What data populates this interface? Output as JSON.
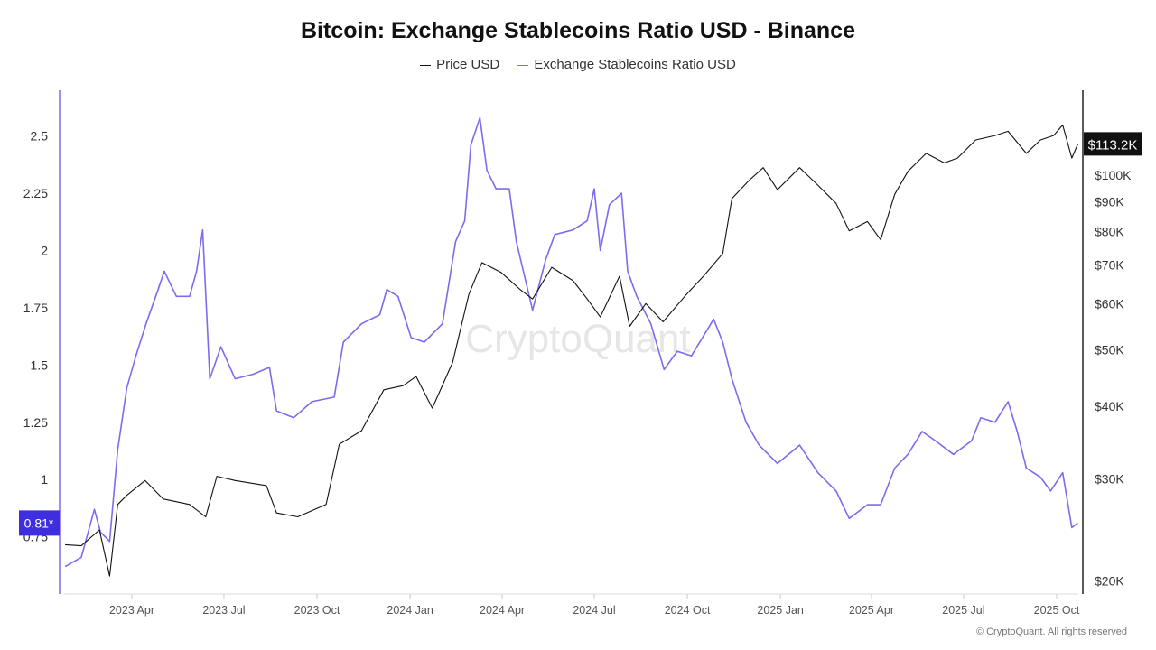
{
  "chart_data": {
    "type": "line",
    "title": "Bitcoin: Exchange Stablecoins Ratio USD - Binance",
    "legend_position": "top-center",
    "grid": false,
    "x_ticks": [
      "2023 Apr",
      "2023 Jul",
      "2023 Oct",
      "2024 Jan",
      "2024 Apr",
      "2024 Jul",
      "2024 Oct",
      "2025 Jan",
      "2025 Apr",
      "2025 Jul",
      "2025 Oct"
    ],
    "left_axis": {
      "ticks": [
        "0.75",
        "1",
        "1.25",
        "1.5",
        "1.75",
        "2",
        "2.25",
        "2.5"
      ],
      "range": [
        0.5,
        2.7
      ]
    },
    "right_axis": {
      "scale": "log",
      "ticks": [
        "$20K",
        "$30K",
        "$40K",
        "$50K",
        "$60K",
        "$70K",
        "$80K",
        "$90K",
        "$100K"
      ],
      "range": [
        19000,
        140000
      ]
    },
    "series": [
      {
        "name": "Price USD",
        "axis": "right",
        "color": "#111111",
        "points": [
          [
            "2023-01-25",
            23100
          ],
          [
            "2023-02-10",
            23000
          ],
          [
            "2023-02-28",
            24500
          ],
          [
            "2023-03-10",
            20400
          ],
          [
            "2023-03-18",
            27100
          ],
          [
            "2023-03-27",
            28100
          ],
          [
            "2023-04-14",
            29800
          ],
          [
            "2023-05-02",
            27700
          ],
          [
            "2023-05-28",
            27100
          ],
          [
            "2023-06-13",
            25800
          ],
          [
            "2023-06-24",
            30300
          ],
          [
            "2023-07-12",
            29800
          ],
          [
            "2023-08-12",
            29200
          ],
          [
            "2023-08-22",
            26200
          ],
          [
            "2023-09-12",
            25800
          ],
          [
            "2023-10-10",
            27100
          ],
          [
            "2023-10-23",
            34400
          ],
          [
            "2023-11-14",
            36300
          ],
          [
            "2023-12-06",
            42700
          ],
          [
            "2023-12-25",
            43400
          ],
          [
            "2024-01-07",
            45000
          ],
          [
            "2024-01-23",
            39700
          ],
          [
            "2024-02-12",
            47600
          ],
          [
            "2024-02-28",
            62300
          ],
          [
            "2024-03-12",
            70700
          ],
          [
            "2024-03-31",
            68000
          ],
          [
            "2024-04-19",
            63500
          ],
          [
            "2024-05-01",
            61200
          ],
          [
            "2024-05-20",
            69400
          ],
          [
            "2024-06-10",
            65800
          ],
          [
            "2024-06-24",
            61200
          ],
          [
            "2024-07-07",
            57000
          ],
          [
            "2024-07-26",
            67000
          ],
          [
            "2024-08-05",
            54900
          ],
          [
            "2024-08-21",
            60100
          ],
          [
            "2024-09-07",
            55900
          ],
          [
            "2024-09-30",
            62300
          ],
          [
            "2024-10-17",
            67000
          ],
          [
            "2024-11-05",
            73300
          ],
          [
            "2024-11-14",
            91100
          ],
          [
            "2024-12-01",
            97900
          ],
          [
            "2024-12-15",
            103000
          ],
          [
            "2024-12-29",
            94400
          ],
          [
            "2025-01-20",
            103000
          ],
          [
            "2025-02-07",
            96100
          ],
          [
            "2025-02-25",
            89400
          ],
          [
            "2025-03-10",
            80200
          ],
          [
            "2025-03-28",
            83200
          ],
          [
            "2025-04-10",
            77400
          ],
          [
            "2025-04-24",
            92700
          ],
          [
            "2025-05-07",
            101500
          ],
          [
            "2025-05-25",
            109000
          ],
          [
            "2025-06-12",
            105000
          ],
          [
            "2025-06-25",
            107000
          ],
          [
            "2025-07-13",
            115000
          ],
          [
            "2025-08-01",
            117000
          ],
          [
            "2025-08-14",
            119000
          ],
          [
            "2025-09-01",
            109000
          ],
          [
            "2025-09-15",
            115000
          ],
          [
            "2025-09-28",
            117000
          ],
          [
            "2025-10-07",
            122000
          ],
          [
            "2025-10-16",
            107000
          ],
          [
            "2025-10-22",
            113200
          ]
        ]
      },
      {
        "name": "Exchange Stablecoins Ratio USD",
        "axis": "left",
        "color": "#7b6cf0",
        "points": [
          [
            "2023-01-25",
            0.62
          ],
          [
            "2023-02-10",
            0.66
          ],
          [
            "2023-02-23",
            0.87
          ],
          [
            "2023-03-01",
            0.77
          ],
          [
            "2023-03-10",
            0.73
          ],
          [
            "2023-03-18",
            1.13
          ],
          [
            "2023-03-27",
            1.4
          ],
          [
            "2023-04-05",
            1.54
          ],
          [
            "2023-04-15",
            1.68
          ],
          [
            "2023-04-27",
            1.83
          ],
          [
            "2023-05-03",
            1.91
          ],
          [
            "2023-05-15",
            1.8
          ],
          [
            "2023-05-28",
            1.8
          ],
          [
            "2023-06-04",
            1.91
          ],
          [
            "2023-06-10",
            2.09
          ],
          [
            "2023-06-17",
            1.44
          ],
          [
            "2023-06-28",
            1.58
          ],
          [
            "2023-07-12",
            1.44
          ],
          [
            "2023-07-30",
            1.46
          ],
          [
            "2023-08-15",
            1.49
          ],
          [
            "2023-08-22",
            1.3
          ],
          [
            "2023-09-08",
            1.27
          ],
          [
            "2023-09-26",
            1.34
          ],
          [
            "2023-10-18",
            1.36
          ],
          [
            "2023-10-27",
            1.6
          ],
          [
            "2023-11-14",
            1.68
          ],
          [
            "2023-12-02",
            1.72
          ],
          [
            "2023-12-09",
            1.83
          ],
          [
            "2023-12-20",
            1.8
          ],
          [
            "2024-01-02",
            1.62
          ],
          [
            "2024-01-15",
            1.6
          ],
          [
            "2024-02-02",
            1.68
          ],
          [
            "2024-02-15",
            2.04
          ],
          [
            "2024-02-24",
            2.13
          ],
          [
            "2024-03-01",
            2.46
          ],
          [
            "2024-03-10",
            2.58
          ],
          [
            "2024-03-17",
            2.35
          ],
          [
            "2024-03-26",
            2.27
          ],
          [
            "2024-04-08",
            2.27
          ],
          [
            "2024-04-15",
            2.04
          ],
          [
            "2024-05-01",
            1.74
          ],
          [
            "2024-05-14",
            1.96
          ],
          [
            "2024-05-23",
            2.07
          ],
          [
            "2024-06-10",
            2.09
          ],
          [
            "2024-06-24",
            2.13
          ],
          [
            "2024-07-01",
            2.27
          ],
          [
            "2024-07-07",
            2.0
          ],
          [
            "2024-07-16",
            2.2
          ],
          [
            "2024-07-28",
            2.25
          ],
          [
            "2024-08-03",
            1.91
          ],
          [
            "2024-08-12",
            1.8
          ],
          [
            "2024-08-26",
            1.68
          ],
          [
            "2024-09-08",
            1.48
          ],
          [
            "2024-09-21",
            1.56
          ],
          [
            "2024-10-05",
            1.54
          ],
          [
            "2024-10-27",
            1.7
          ],
          [
            "2024-11-05",
            1.6
          ],
          [
            "2024-11-14",
            1.44
          ],
          [
            "2024-11-28",
            1.25
          ],
          [
            "2024-12-11",
            1.15
          ],
          [
            "2024-12-29",
            1.07
          ],
          [
            "2025-01-20",
            1.15
          ],
          [
            "2025-02-07",
            1.03
          ],
          [
            "2025-02-25",
            0.95
          ],
          [
            "2025-03-10",
            0.83
          ],
          [
            "2025-03-28",
            0.89
          ],
          [
            "2025-04-10",
            0.89
          ],
          [
            "2025-04-24",
            1.05
          ],
          [
            "2025-05-07",
            1.11
          ],
          [
            "2025-05-21",
            1.21
          ],
          [
            "2025-06-03",
            1.17
          ],
          [
            "2025-06-21",
            1.11
          ],
          [
            "2025-07-09",
            1.17
          ],
          [
            "2025-07-18",
            1.27
          ],
          [
            "2025-08-01",
            1.25
          ],
          [
            "2025-08-14",
            1.34
          ],
          [
            "2025-08-23",
            1.21
          ],
          [
            "2025-09-01",
            1.05
          ],
          [
            "2025-09-15",
            1.01
          ],
          [
            "2025-09-25",
            0.95
          ],
          [
            "2025-10-07",
            1.03
          ],
          [
            "2025-10-16",
            0.79
          ],
          [
            "2025-10-22",
            0.81
          ]
        ]
      }
    ],
    "last_value_labels": {
      "left": "0.81*",
      "right": "$113.2K"
    },
    "watermark": "CryptoQuant"
  },
  "footer": "© CryptoQuant. All rights reserved"
}
